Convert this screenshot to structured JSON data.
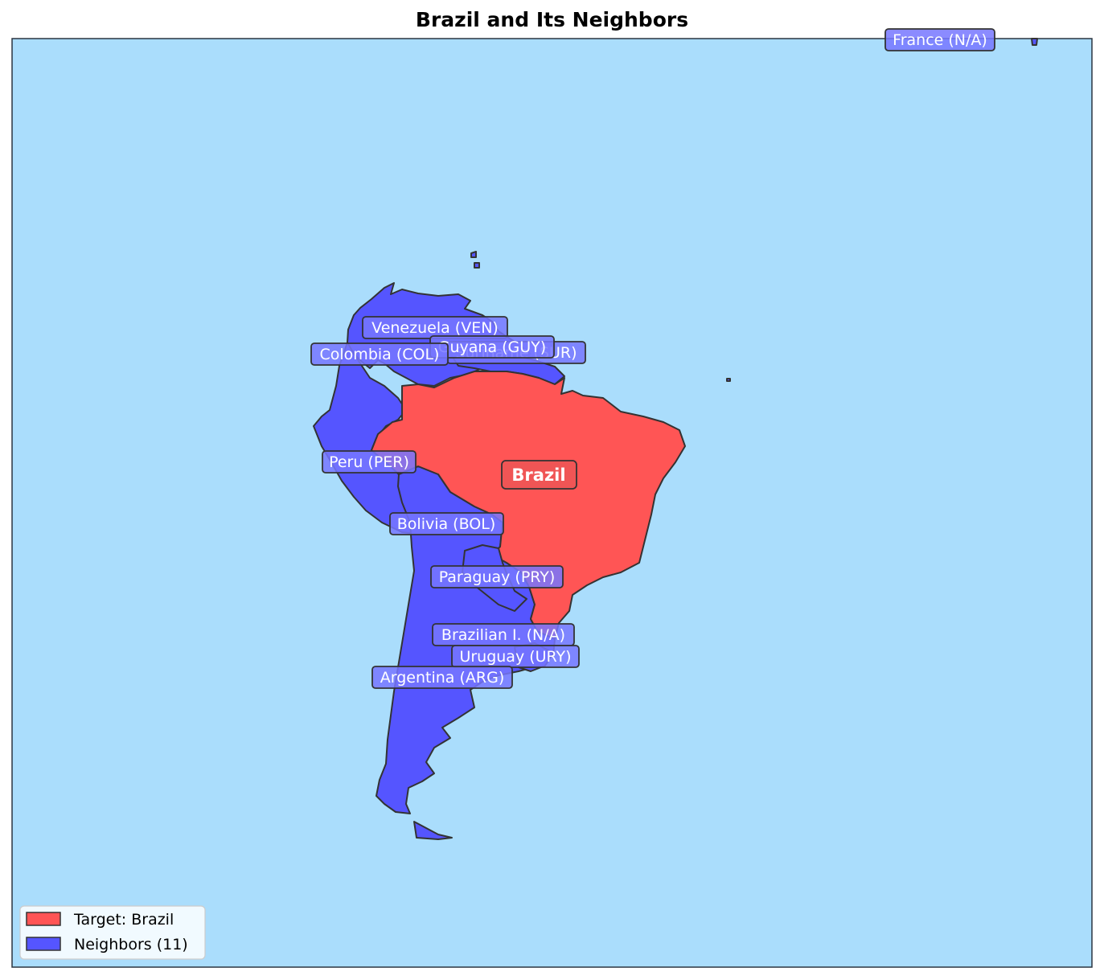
{
  "title": "Brazil and Its Neighbors",
  "colors": {
    "ocean": "#aaddfc",
    "target": "#ff5555",
    "neighbor": "#5555ff",
    "outline": "#333333",
    "label_box_neighbor": "#7777ff",
    "label_box_target": "#ee5555"
  },
  "target": {
    "name": "Brazil"
  },
  "labels": [
    {
      "key": "venezuela",
      "text": "Venezuela (VEN)"
    },
    {
      "key": "suriname",
      "text": "Suriname (SUR)"
    },
    {
      "key": "guyana",
      "text": "Guyana (GUY)"
    },
    {
      "key": "colombia",
      "text": "Colombia (COL)"
    },
    {
      "key": "peru",
      "text": "Peru (PER)"
    },
    {
      "key": "bolivia",
      "text": "Bolivia (BOL)"
    },
    {
      "key": "paraguay",
      "text": "Paraguay (PRY)"
    },
    {
      "key": "brazilian_island",
      "text": "Brazilian I. (N/A)"
    },
    {
      "key": "uruguay",
      "text": "Uruguay (URY)"
    },
    {
      "key": "argentina",
      "text": "Argentina (ARG)"
    },
    {
      "key": "france",
      "text": "France (N/A)"
    }
  ],
  "legend": {
    "items": [
      {
        "label": "Target: Brazil",
        "color": "#ff5555"
      },
      {
        "label": "Neighbors (11)",
        "color": "#5555ff"
      }
    ]
  }
}
